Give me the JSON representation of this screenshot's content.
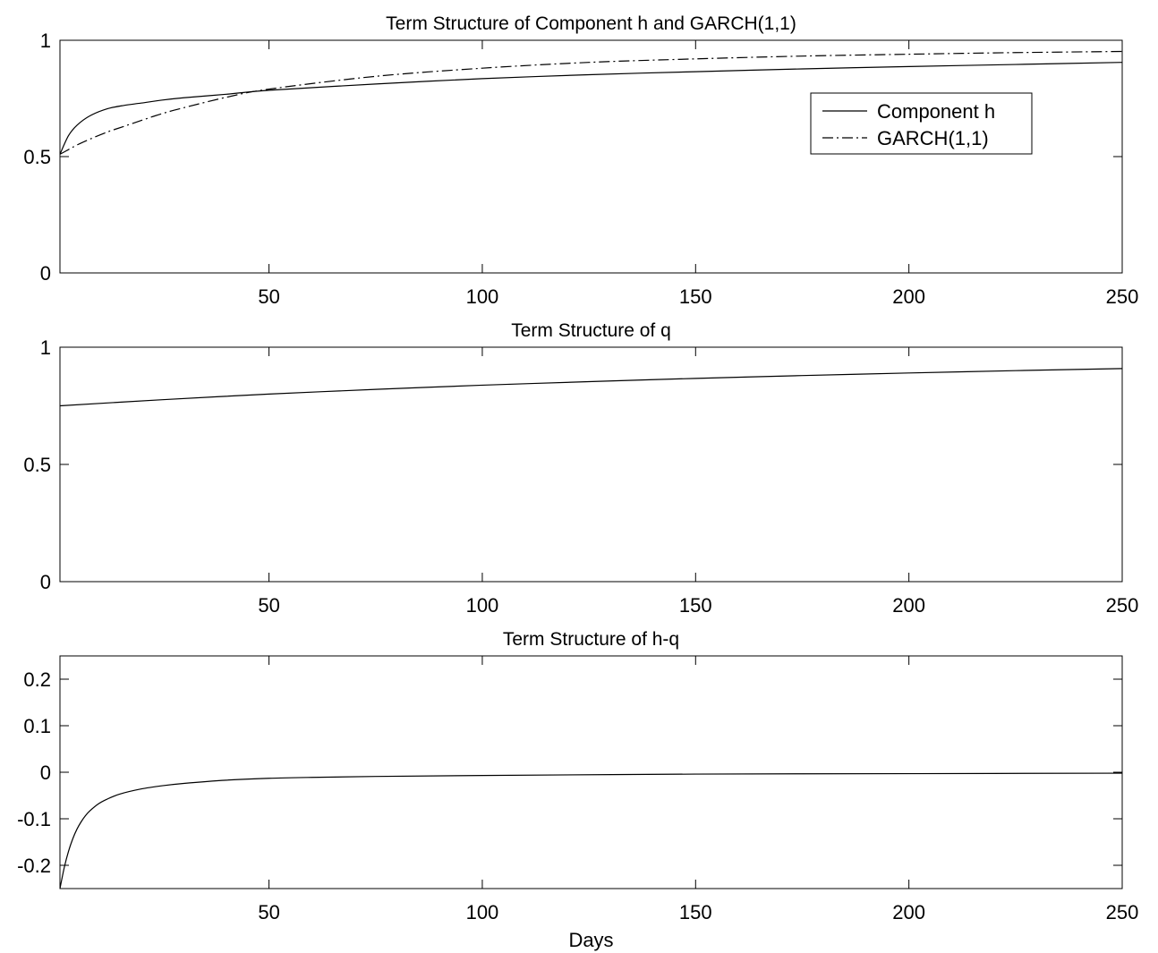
{
  "chart_data": [
    {
      "type": "line",
      "title": "Term Structure of Component h and GARCH(1,1)",
      "xlabel": "",
      "ylabel": "",
      "xlim": [
        1,
        250
      ],
      "ylim": [
        0,
        1
      ],
      "xticks": [
        50,
        100,
        150,
        200,
        250
      ],
      "yticks": [
        0,
        0.5,
        1
      ],
      "xtick_labels": [
        "50",
        "100",
        "150",
        "200",
        "250"
      ],
      "ytick_labels": [
        "0",
        "0.5",
        "1"
      ],
      "grid": false,
      "legend": {
        "position": "top-right",
        "entries": [
          "Component h",
          "GARCH(1,1)"
        ]
      },
      "series": [
        {
          "name": "Component h",
          "style": "solid",
          "x": [
            1,
            3,
            5,
            8,
            12,
            16,
            20,
            25,
            30,
            40,
            50,
            75,
            100,
            125,
            150,
            175,
            200,
            225,
            250
          ],
          "y": [
            0.51,
            0.59,
            0.635,
            0.675,
            0.705,
            0.72,
            0.73,
            0.743,
            0.753,
            0.768,
            0.785,
            0.812,
            0.835,
            0.852,
            0.865,
            0.877,
            0.887,
            0.896,
            0.905
          ]
        },
        {
          "name": "GARCH(1,1)",
          "style": "dashdot",
          "x": [
            1,
            3,
            5,
            8,
            12,
            16,
            20,
            25,
            30,
            40,
            50,
            75,
            100,
            125,
            150,
            175,
            200,
            225,
            250
          ],
          "y": [
            0.51,
            0.53,
            0.55,
            0.575,
            0.605,
            0.63,
            0.655,
            0.685,
            0.71,
            0.755,
            0.79,
            0.845,
            0.88,
            0.905,
            0.92,
            0.932,
            0.94,
            0.947,
            0.952
          ]
        }
      ]
    },
    {
      "type": "line",
      "title": "Term Structure of q",
      "xlabel": "",
      "ylabel": "",
      "xlim": [
        1,
        250
      ],
      "ylim": [
        0,
        1
      ],
      "xticks": [
        50,
        100,
        150,
        200,
        250
      ],
      "yticks": [
        0,
        0.5,
        1
      ],
      "xtick_labels": [
        "50",
        "100",
        "150",
        "200",
        "250"
      ],
      "ytick_labels": [
        "0",
        "0.5",
        "1"
      ],
      "grid": false,
      "series": [
        {
          "style": "solid",
          "x": [
            1,
            25,
            50,
            75,
            100,
            125,
            150,
            175,
            200,
            225,
            250
          ],
          "y": [
            0.75,
            0.776,
            0.8,
            0.82,
            0.838,
            0.853,
            0.867,
            0.879,
            0.89,
            0.9,
            0.909
          ]
        }
      ]
    },
    {
      "type": "line",
      "title": "Term Structure of h-q",
      "xlabel": "Days",
      "ylabel": "",
      "xlim": [
        1,
        250
      ],
      "ylim": [
        -0.25,
        0.25
      ],
      "xticks": [
        50,
        100,
        150,
        200,
        250
      ],
      "yticks": [
        -0.2,
        -0.1,
        0,
        0.1,
        0.2
      ],
      "xtick_labels": [
        "50",
        "100",
        "150",
        "200",
        "250"
      ],
      "ytick_labels": [
        "-0.2",
        "-0.1",
        "0",
        "0.1",
        "0.2"
      ],
      "grid": false,
      "series": [
        {
          "style": "solid",
          "x": [
            1,
            2,
            3,
            4,
            5,
            6,
            7,
            8,
            10,
            12,
            15,
            20,
            25,
            30,
            40,
            50,
            60,
            75,
            100,
            150,
            200,
            250
          ],
          "y": [
            -0.25,
            -0.205,
            -0.17,
            -0.143,
            -0.122,
            -0.106,
            -0.093,
            -0.083,
            -0.068,
            -0.058,
            -0.047,
            -0.036,
            -0.029,
            -0.024,
            -0.017,
            -0.013,
            -0.011,
            -0.009,
            -0.007,
            -0.004,
            -0.003,
            -0.002
          ]
        }
      ]
    }
  ]
}
